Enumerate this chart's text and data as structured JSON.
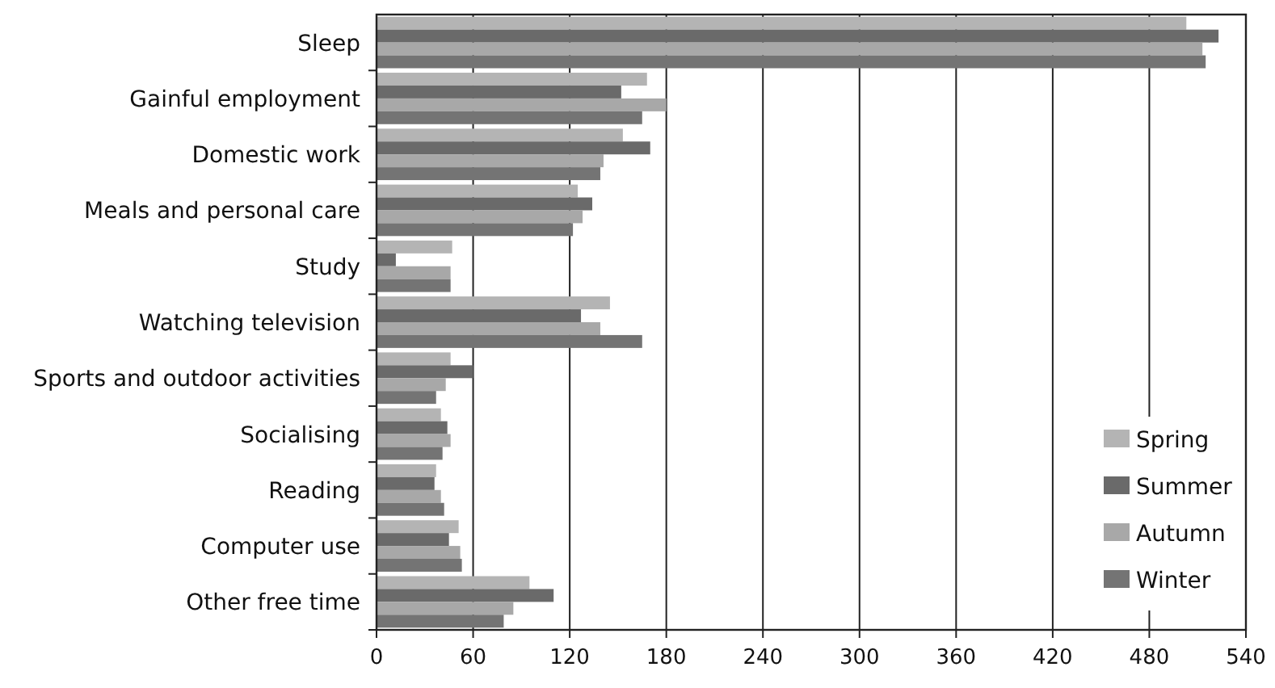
{
  "chart_data": {
    "type": "bar",
    "orientation": "horizontal",
    "categories": [
      "Sleep",
      "Gainful employment",
      "Domestic work",
      "Meals and personal care",
      "Study",
      "Watching television",
      "Sports and outdoor activities",
      "Socialising",
      "Reading",
      "Computer use",
      "Other free time"
    ],
    "series": [
      {
        "name": "Spring",
        "color": "#b4b4b4",
        "values": [
          503,
          168,
          153,
          125,
          47,
          145,
          46,
          40,
          37,
          51,
          95
        ]
      },
      {
        "name": "Summer",
        "color": "#6a6a6a",
        "values": [
          523,
          152,
          170,
          134,
          12,
          127,
          60,
          44,
          36,
          45,
          110
        ]
      },
      {
        "name": "Autumn",
        "color": "#a8a8a8",
        "values": [
          513,
          180,
          141,
          128,
          46,
          139,
          43,
          46,
          40,
          52,
          85
        ]
      },
      {
        "name": "Winter",
        "color": "#747474",
        "values": [
          515,
          165,
          139,
          122,
          46,
          165,
          37,
          41,
          42,
          53,
          79
        ]
      }
    ],
    "xlim": [
      0,
      540
    ],
    "xticks": [
      0,
      60,
      120,
      180,
      240,
      300,
      360,
      420,
      480,
      540
    ],
    "grid": "x",
    "legend": "bottom right"
  }
}
